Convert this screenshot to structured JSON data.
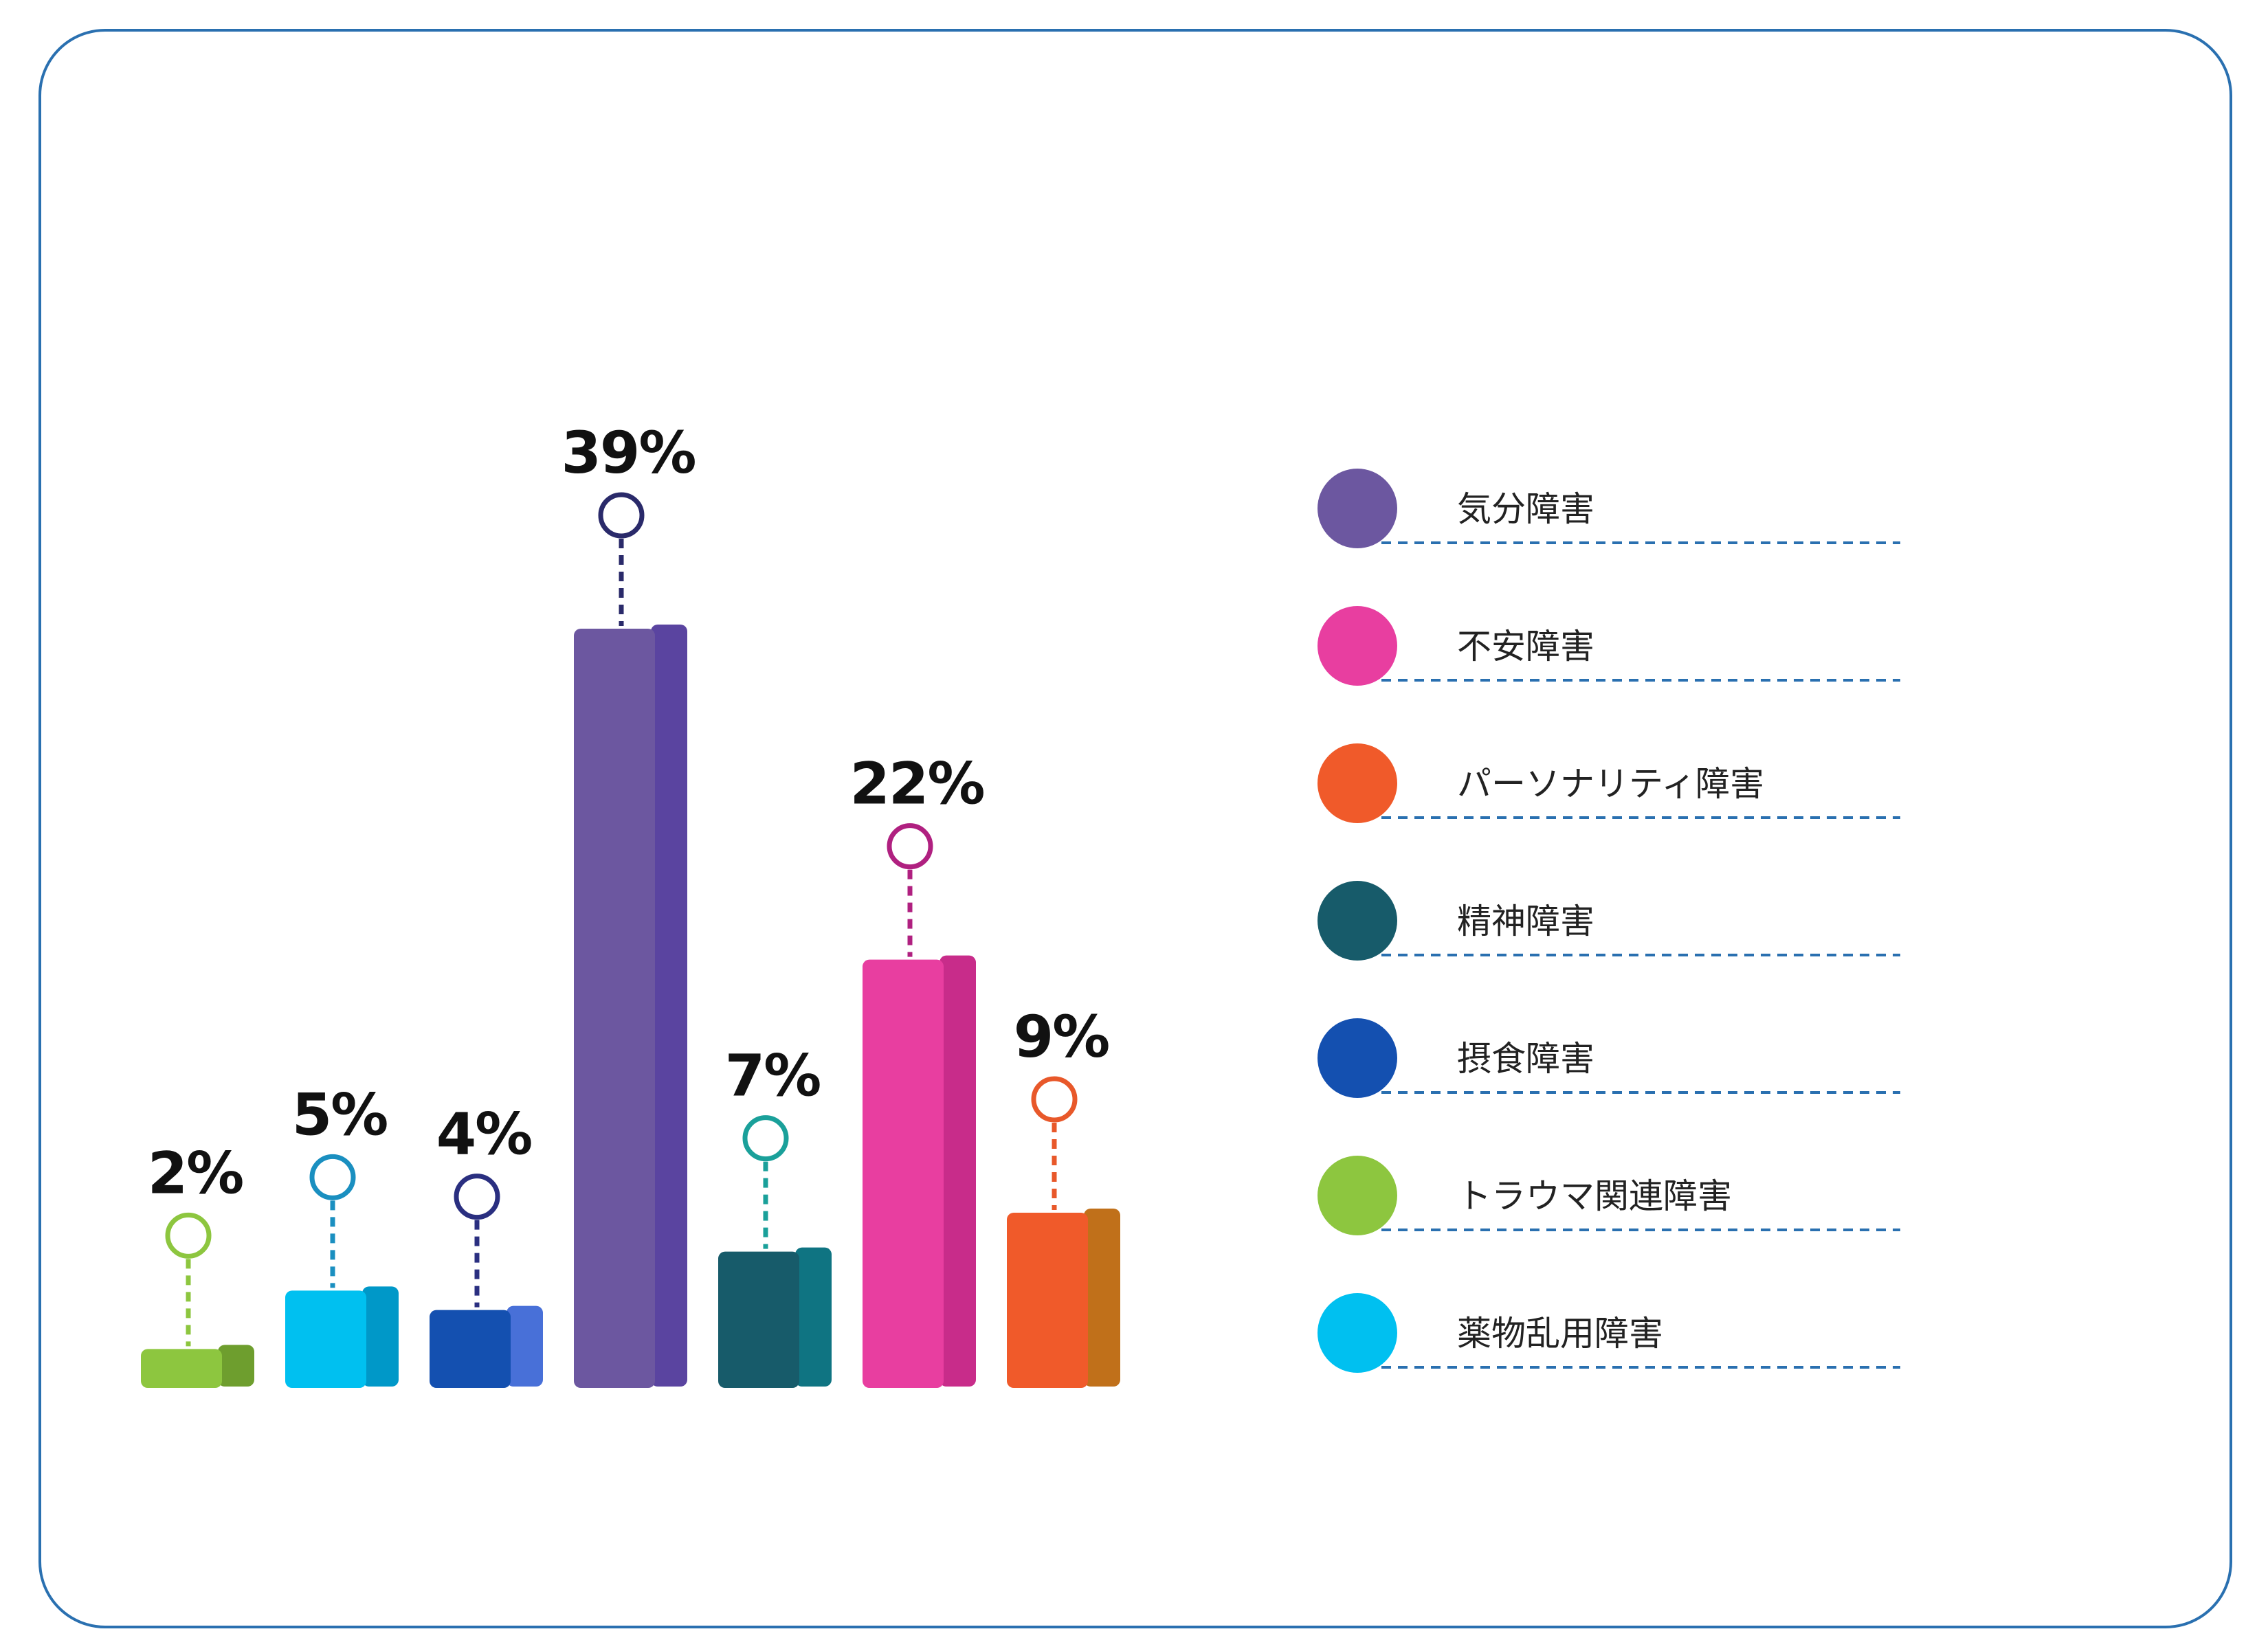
{
  "chart_data": {
    "type": "bar",
    "categories": [
      "トラウマ関連障害",
      "薬物乱用障害",
      "摂食障害",
      "気分障害",
      "精神障害",
      "不安障害",
      "パーソナリティ障害"
    ],
    "values": [
      2,
      5,
      4,
      39,
      7,
      22,
      9
    ],
    "value_labels": [
      "2%",
      "5%",
      "4%",
      "39%",
      "7%",
      "22%",
      "9%"
    ],
    "bar_colors": [
      {
        "front": "#8dc63f",
        "side": "#6e9e2e",
        "marker": "#8dc63f"
      },
      {
        "front": "#00c0f0",
        "side": "#0098c8",
        "marker": "#1a8fc0"
      },
      {
        "front": "#1450b0",
        "side": "#4870d8",
        "marker": "#2a2f80"
      },
      {
        "front": "#6c57a0",
        "side": "#5a44a0",
        "marker": "#2a2a6a"
      },
      {
        "front": "#175b6a",
        "side": "#0f7482",
        "marker": "#1aa09a"
      },
      {
        "front": "#e83ea0",
        "side": "#c82c8a",
        "marker": "#b02080"
      },
      {
        "front": "#f05a2a",
        "side": "#c0701a",
        "marker": "#e8582a"
      }
    ],
    "legend": [
      {
        "label": "気分障害",
        "color": "#6c57a0"
      },
      {
        "label": "不安障害",
        "color": "#e83ea0"
      },
      {
        "label": "パーソナリティ障害",
        "color": "#f05a2a"
      },
      {
        "label": "精神障害",
        "color": "#175b6a"
      },
      {
        "label": "摂食障害",
        "color": "#1450b0"
      },
      {
        "label": "トラウマ関連障害",
        "color": "#8dc63f"
      },
      {
        "label": "薬物乱用障害",
        "color": "#00c0f0"
      }
    ],
    "legend_position": "right",
    "ylim": [
      0,
      39
    ],
    "grid": false,
    "frame_color": "#2a70b0",
    "dash_color": "#2a70b0",
    "label_color": "#111111"
  }
}
